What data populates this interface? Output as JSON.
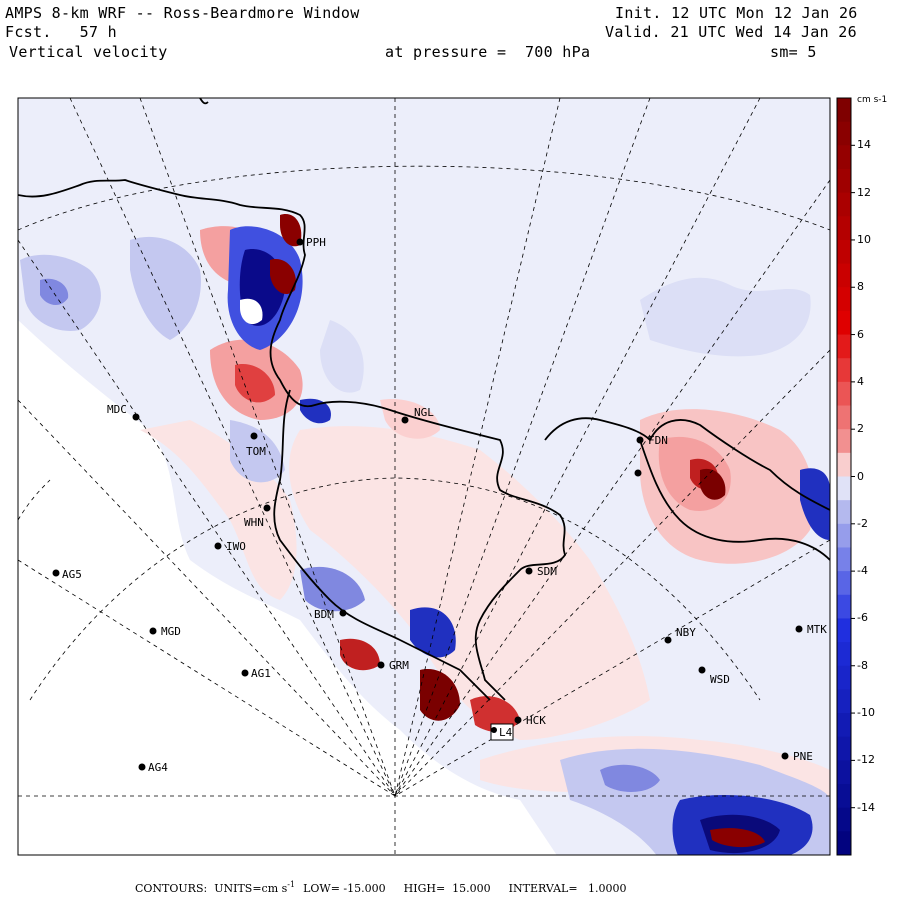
{
  "header": {
    "title": "AMPS 8-km WRF -- Ross-Beardmore Window",
    "fcst": "Fcst.   57 h",
    "field": "Vertical velocity",
    "init": "Init. 12 UTC Mon 12 Jan 26",
    "valid": "Valid. 21 UTC Wed 14 Jan 26",
    "pressure_label": "at pressure =  700 hPa",
    "smoothing": "sm= 5"
  },
  "colorbar": {
    "units": "cm s-1",
    "labels": [
      "14",
      "12",
      "10",
      "8",
      "6",
      "4",
      "2",
      "0",
      "-2",
      "-4",
      "-6",
      "-8",
      "-10",
      "-12",
      "-14"
    ],
    "colors": {
      "pos_dark": "#7a0000",
      "pos_mid": "#e00000",
      "pos_light": "#f4a0a0",
      "neutral": "#ffffff",
      "neg_light": "#c4c8f0",
      "neg_mid": "#2030e0",
      "neg_dark": "#00007a"
    }
  },
  "stations": [
    {
      "name": "PPH"
    },
    {
      "name": "MDC"
    },
    {
      "name": "NGL"
    },
    {
      "name": "TOM"
    },
    {
      "name": "FDN"
    },
    {
      "name": "WHN"
    },
    {
      "name": "IWO"
    },
    {
      "name": "AG5"
    },
    {
      "name": "SDM"
    },
    {
      "name": "BDM"
    },
    {
      "name": "MGD"
    },
    {
      "name": "MTK"
    },
    {
      "name": "NBY"
    },
    {
      "name": "GRM"
    },
    {
      "name": "AG1"
    },
    {
      "name": "WSD"
    },
    {
      "name": "HCK"
    },
    {
      "name": "L4"
    },
    {
      "name": "AG4"
    },
    {
      "name": "PNE"
    }
  ],
  "footer": {
    "contours": "CONTOURS:  UNITS=cm s",
    "units_sup": "-1",
    "low": "LOW= -15.000",
    "high": "HIGH=  15.000",
    "interval": "INTERVAL=   1.0000"
  }
}
